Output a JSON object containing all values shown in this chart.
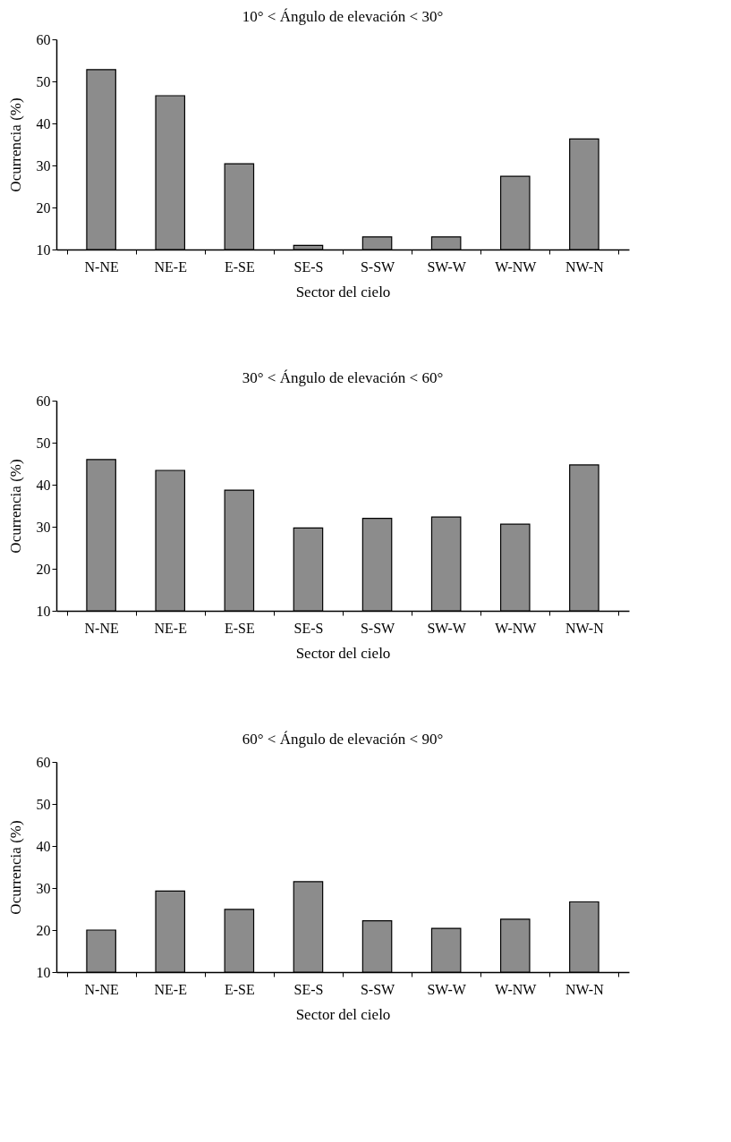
{
  "chart_data": [
    {
      "type": "bar",
      "title": "10° < Ángulo de elevación < 30°",
      "xlabel": "Sector del cielo",
      "ylabel": "Ocurrencia (%)",
      "categories": [
        "N-NE",
        "NE-E",
        "E-SE",
        "SE-S",
        "S-SW",
        "SW-W",
        "W-NW",
        "NW-N"
      ],
      "values": [
        52.8,
        46.6,
        30.4,
        11,
        13,
        13,
        27.4,
        36.3
      ],
      "color": "#8c8c8c",
      "ylim": [
        10,
        60
      ],
      "yticks": [
        10,
        20,
        30,
        40,
        50,
        60
      ],
      "grid": false
    },
    {
      "type": "bar",
      "title": "30° < Ángulo de elevación < 60°",
      "xlabel": "Sector del cielo",
      "ylabel": "Ocurrencia (%)",
      "categories": [
        "N-NE",
        "NE-E",
        "E-SE",
        "SE-S",
        "S-SW",
        "SW-W",
        "W-NW",
        "NW-N"
      ],
      "values": [
        46.0,
        43.4,
        38.7,
        29.7,
        32.0,
        32.3,
        30.6,
        44.7
      ],
      "color": "#8c8c8c",
      "ylim": [
        10,
        60
      ],
      "yticks": [
        10,
        20,
        30,
        40,
        50,
        60
      ],
      "grid": false
    },
    {
      "type": "bar",
      "title": "60° < Ángulo de elevación < 90°",
      "xlabel": "Sector del cielo",
      "ylabel": "Ocurrencia (%)",
      "categories": [
        "N-NE",
        "NE-E",
        "E-SE",
        "SE-S",
        "S-SW",
        "SW-W",
        "W-NW",
        "NW-N"
      ],
      "values": [
        20.0,
        29.3,
        24.9,
        31.5,
        22.2,
        20.4,
        22.6,
        26.7
      ],
      "color": "#8c8c8c",
      "ylim": [
        10,
        60
      ],
      "yticks": [
        10,
        20,
        30,
        40,
        50,
        60
      ],
      "grid": false
    }
  ]
}
